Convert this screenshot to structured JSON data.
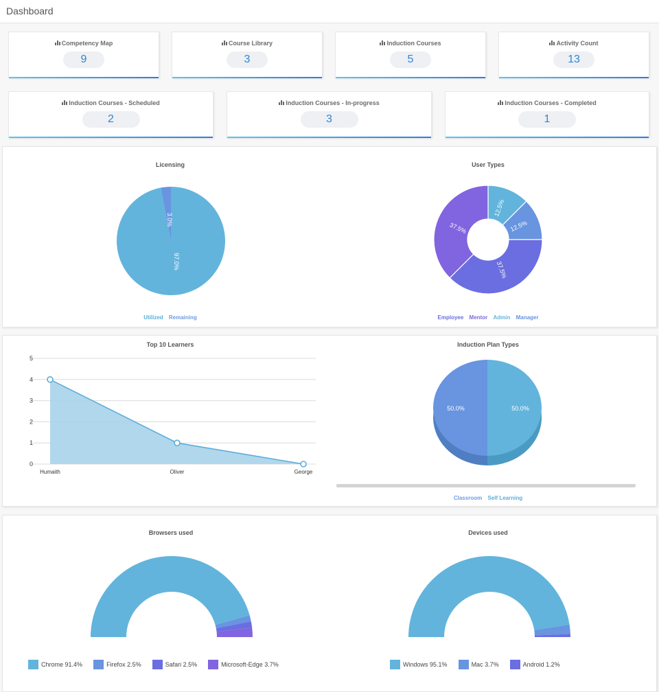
{
  "header": {
    "title": "Dashboard"
  },
  "stats_row1": [
    {
      "label": "Competency Map",
      "value": "9"
    },
    {
      "label": "Course Library",
      "value": "3"
    },
    {
      "label": "Induction Courses",
      "value": "5"
    },
    {
      "label": "Activity Count",
      "value": "13"
    }
  ],
  "stats_row2": [
    {
      "label": "Induction Courses - Scheduled",
      "value": "2"
    },
    {
      "label": "Induction Courses - In-progress",
      "value": "3"
    },
    {
      "label": "Induction Courses - Completed",
      "value": "1"
    }
  ],
  "licensing": {
    "title": "Licensing",
    "legend": [
      "Utilized",
      "Remaining"
    ],
    "labels": [
      "97.0%",
      "3.0%"
    ]
  },
  "user_types": {
    "title": "User Types",
    "legend": [
      "Employee",
      "Mentor",
      "Admin",
      "Manager"
    ],
    "labels": [
      "12.5%",
      "12.5%",
      "37.5%",
      "37.5%"
    ]
  },
  "learners": {
    "title": "Top 10 Learners"
  },
  "induction_plan": {
    "title": "Induction Plan Types",
    "legend": [
      "Classroom",
      "Self Learning"
    ],
    "labels": [
      "50.0%",
      "50.0%"
    ]
  },
  "browsers": {
    "title": "Browsers used",
    "legend": [
      {
        "name": "Chrome",
        "pct": "91.4%"
      },
      {
        "name": "Firefox",
        "pct": "2.5%"
      },
      {
        "name": "Safari",
        "pct": "2.5%"
      },
      {
        "name": "Microsoft-Edge",
        "pct": "3.7%"
      }
    ]
  },
  "devices": {
    "title": "Devices used",
    "legend": [
      {
        "name": "Windows",
        "pct": "95.1%"
      },
      {
        "name": "Mac",
        "pct": "3.7%"
      },
      {
        "name": "Android",
        "pct": "1.2%"
      }
    ]
  },
  "colors": {
    "accent": "#2b86d8",
    "blue_light": "#62b4dc",
    "blue_mid": "#6894e0",
    "indigo": "#6a6ee0",
    "purple": "#8164df"
  },
  "chart_data": [
    {
      "type": "pie",
      "title": "Licensing",
      "categories": [
        "Utilized",
        "Remaining"
      ],
      "values": [
        97.0,
        3.0
      ]
    },
    {
      "type": "pie",
      "title": "User Types",
      "categories": [
        "Employee",
        "Mentor",
        "Admin",
        "Manager"
      ],
      "values": [
        12.5,
        12.5,
        37.5,
        37.5
      ]
    },
    {
      "type": "area",
      "title": "Top 10 Learners",
      "categories": [
        "Humaith",
        "Oliver",
        "George"
      ],
      "values": [
        4,
        1,
        0
      ],
      "ylim": [
        0,
        5
      ],
      "yticks": [
        "0",
        "1",
        "2",
        "3",
        "4",
        "5"
      ]
    },
    {
      "type": "pie",
      "title": "Induction Plan Types",
      "categories": [
        "Classroom",
        "Self Learning"
      ],
      "values": [
        50.0,
        50.0
      ]
    },
    {
      "type": "pie",
      "title": "Browsers used",
      "categories": [
        "Chrome",
        "Firefox",
        "Safari",
        "Microsoft-Edge"
      ],
      "values": [
        91.4,
        2.5,
        2.5,
        3.7
      ]
    },
    {
      "type": "pie",
      "title": "Devices used",
      "categories": [
        "Windows",
        "Mac",
        "Android"
      ],
      "values": [
        95.1,
        3.7,
        1.2
      ]
    }
  ]
}
